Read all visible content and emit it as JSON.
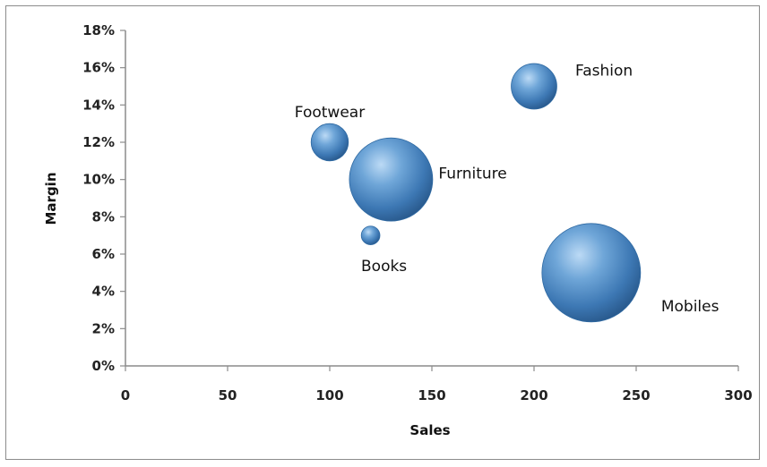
{
  "chart_data": {
    "type": "bubble",
    "xlabel": "Sales",
    "ylabel": "Margin",
    "xlim": [
      0,
      300
    ],
    "ylim": [
      0,
      18
    ],
    "xticks": [
      0,
      50,
      100,
      150,
      200,
      250,
      300
    ],
    "yticks": [
      "0%",
      "2%",
      "4%",
      "6%",
      "8%",
      "10%",
      "12%",
      "14%",
      "16%",
      "18%"
    ],
    "grid": false,
    "bubble_color": "#4a86c0",
    "points": [
      {
        "label": "Fashion",
        "x": 200,
        "y": 15,
        "size": 6
      },
      {
        "label": "Footwear",
        "x": 100,
        "y": 12,
        "size": 4
      },
      {
        "label": "Furniture",
        "x": 130,
        "y": 10,
        "size": 20
      },
      {
        "label": "Books",
        "x": 120,
        "y": 7,
        "size": 1
      },
      {
        "label": "Mobiles",
        "x": 228,
        "y": 5,
        "size": 28
      }
    ]
  }
}
